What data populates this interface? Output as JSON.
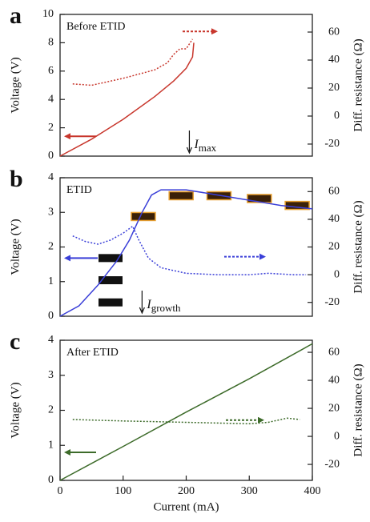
{
  "chart_data": [
    {
      "type": "line",
      "panel_label": "a",
      "title": "Before ETID",
      "ylabel": "Voltage (V)",
      "y2label": "Diff. resistance (Ω)",
      "xlim": [
        0,
        400
      ],
      "ylim": [
        0,
        10
      ],
      "yticks": [
        0,
        2,
        4,
        6,
        8,
        10
      ],
      "y2lim": [
        -28.6,
        72.6
      ],
      "y2ticks": [
        -20,
        0,
        20,
        40,
        60
      ],
      "annotation": {
        "text": "I",
        "sub": "max",
        "x": 205
      },
      "series": [
        {
          "color": "#c8372d",
          "style": "solid",
          "axis": "y",
          "x": [
            0,
            50,
            100,
            150,
            180,
            200,
            210,
            212
          ],
          "values": [
            0,
            1.2,
            2.6,
            4.2,
            5.3,
            6.2,
            7.0,
            8.0
          ]
        },
        {
          "color": "#c8372d",
          "style": "dotted",
          "axis": "y2",
          "x": [
            20,
            50,
            100,
            150,
            170,
            180,
            190,
            200,
            210
          ],
          "values": [
            23,
            22,
            27,
            33,
            38,
            44,
            48,
            48,
            55
          ]
        }
      ]
    },
    {
      "type": "line",
      "panel_label": "b",
      "title": "ETID",
      "ylabel": "Voltage (V)",
      "y2label": "Diff. resistance (Ω)",
      "xlim": [
        0,
        400
      ],
      "ylim": [
        0,
        4
      ],
      "yticks": [
        0,
        1,
        2,
        3,
        4
      ],
      "y2lim": [
        -30,
        70
      ],
      "y2ticks": [
        -20,
        0,
        20,
        40,
        60
      ],
      "annotation": {
        "text": "I",
        "sub": "growth",
        "x": 130
      },
      "series": [
        {
          "color": "#3a3fd8",
          "style": "solid",
          "axis": "y",
          "x": [
            0,
            30,
            60,
            90,
            110,
            130,
            145,
            160,
            200,
            250,
            300,
            350,
            400
          ],
          "values": [
            0,
            0.3,
            0.9,
            1.6,
            2.2,
            3.0,
            3.5,
            3.65,
            3.65,
            3.5,
            3.35,
            3.2,
            3.1
          ]
        },
        {
          "color": "#3a3fd8",
          "style": "dotted",
          "axis": "y2",
          "x": [
            20,
            40,
            60,
            80,
            100,
            115,
            125,
            140,
            160,
            200,
            250,
            300,
            330,
            370,
            390
          ],
          "values": [
            28,
            24,
            22,
            25,
            30,
            35,
            25,
            12,
            5,
            1,
            0,
            0,
            1,
            0,
            0
          ]
        }
      ]
    },
    {
      "type": "line",
      "panel_label": "c",
      "title": "After ETID",
      "ylabel": "Voltage (V)",
      "y2label": "Diff. resistance (Ω)",
      "xlabel": "Current (mA)",
      "xlim": [
        0,
        400
      ],
      "xticks": [
        0,
        100,
        200,
        300,
        400
      ],
      "ylim": [
        0,
        4
      ],
      "yticks": [
        0,
        1,
        2,
        3,
        4
      ],
      "y2lim": [
        -31.4,
        68.6
      ],
      "y2ticks": [
        -20,
        0,
        20,
        40,
        60
      ],
      "series": [
        {
          "color": "#3d6b2a",
          "style": "solid",
          "axis": "y",
          "x": [
            0,
            100,
            200,
            300,
            400
          ],
          "values": [
            0,
            0.97,
            1.95,
            2.9,
            3.9
          ]
        },
        {
          "color": "#3d6b2a",
          "style": "dotted",
          "axis": "y2",
          "x": [
            20,
            100,
            200,
            300,
            330,
            360,
            380
          ],
          "values": [
            12,
            11,
            10,
            9,
            10,
            13,
            12
          ]
        }
      ]
    }
  ]
}
